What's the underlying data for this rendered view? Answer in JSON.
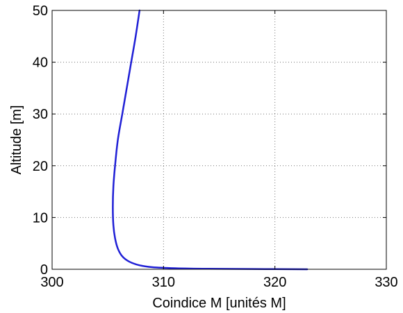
{
  "chart_data": {
    "type": "line",
    "title": "",
    "xlabel": "Coindice M [unités M]",
    "ylabel": "Altitude [m]",
    "xlim": [
      300,
      330
    ],
    "ylim": [
      0,
      50
    ],
    "xticks": [
      300,
      310,
      320,
      330
    ],
    "yticks": [
      0,
      10,
      20,
      30,
      40,
      50
    ],
    "xtick_labels": [
      "300",
      "310",
      "320",
      "330"
    ],
    "ytick_labels": [
      "0",
      "10",
      "20",
      "30",
      "40",
      "50"
    ],
    "grid": true,
    "series": [
      {
        "color": "#1f1fd6",
        "x": [
          322.9,
          318.0,
          314.0,
          311.0,
          309.0,
          307.8,
          306.9,
          306.3,
          305.9,
          305.65,
          305.5,
          305.45,
          305.5,
          305.65,
          305.9,
          306.3,
          306.7,
          307.1,
          307.5,
          307.85
        ],
        "y": [
          0.0,
          0.05,
          0.1,
          0.2,
          0.4,
          0.8,
          1.5,
          2.5,
          4.0,
          6.0,
          8.5,
          12.0,
          16.0,
          20.0,
          25.0,
          30.0,
          35.0,
          40.0,
          45.0,
          50.0
        ]
      }
    ]
  }
}
